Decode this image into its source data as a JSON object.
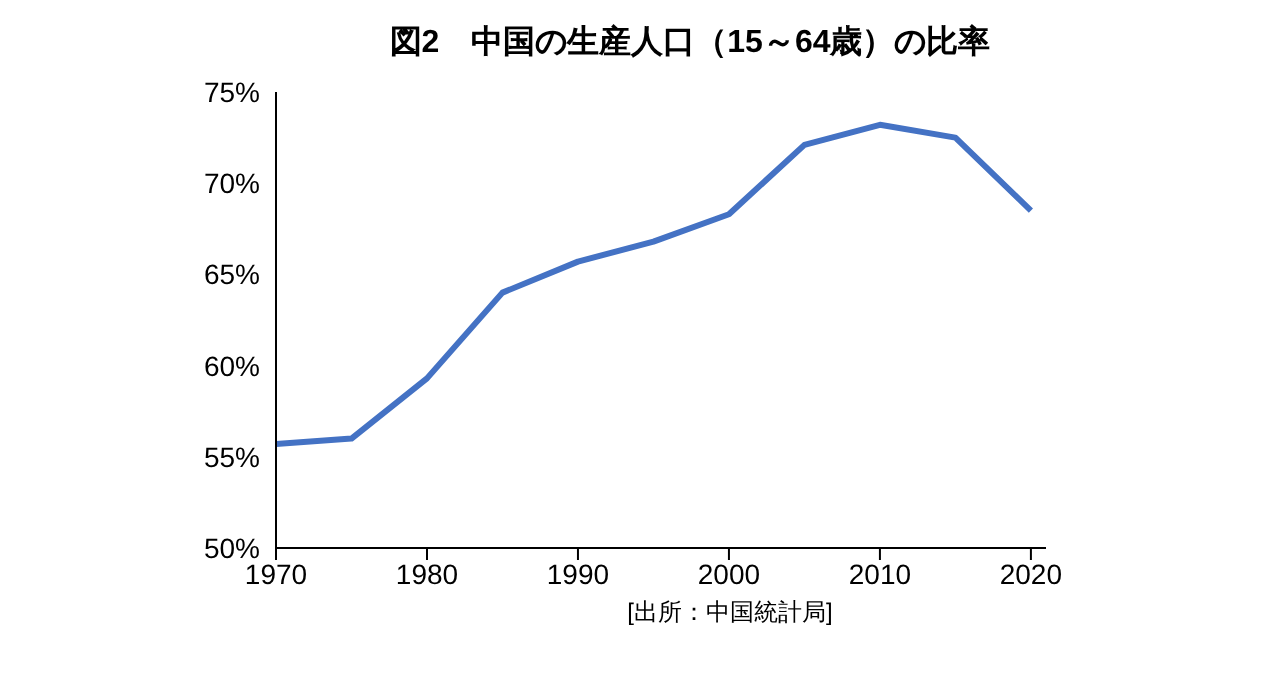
{
  "chart_data": {
    "type": "line",
    "title": "図2　中国の生産人口（15～64歳）の比率",
    "annotations": [
      "[出所：中国統計局]"
    ],
    "x": [
      1970,
      1975,
      1980,
      1985,
      1990,
      1995,
      2000,
      2005,
      2010,
      2015,
      2020
    ],
    "series": [
      {
        "color": "#4472c4",
        "values": [
          55.7,
          56.0,
          59.3,
          64.0,
          65.7,
          66.8,
          68.3,
          72.1,
          73.2,
          72.5,
          68.5
        ]
      }
    ],
    "xlim": [
      1970,
      2021
    ],
    "xticks": [
      1970,
      1980,
      1990,
      2000,
      2010,
      2020
    ],
    "ylim": [
      50,
      75
    ],
    "yticks": [
      {
        "value": 50,
        "label": "50%"
      },
      {
        "value": 55,
        "label": "55%"
      },
      {
        "value": 60,
        "label": "60%"
      },
      {
        "value": 65,
        "label": "65%"
      },
      {
        "value": 70,
        "label": "70%"
      },
      {
        "value": 75,
        "label": "75%"
      }
    ],
    "grid": false,
    "legend": false,
    "marker": "none",
    "line_style": "solid"
  }
}
